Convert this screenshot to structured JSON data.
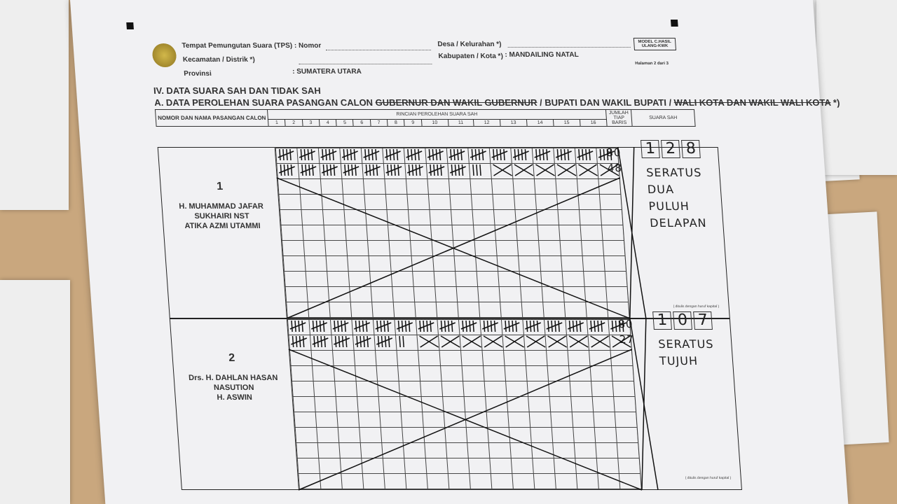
{
  "header": {
    "tps_label": "Tempat Pemungutan Suara (TPS) : Nomor",
    "kecamatan_label": "Kecamatan / Distrik *)",
    "provinsi_label": "Provinsi",
    "provinsi_value": ": SUMATERA UTARA",
    "desa_label": "Desa / Kelurahan *)",
    "kabupaten_label": "Kabupaten / Kota *)",
    "kabupaten_value": ": MANDAILING NATAL",
    "model": "MODEL C.HASIL ULANG-KWK",
    "page": "Halaman 2 dari 3"
  },
  "section": {
    "title": "IV.   DATA SUARA SAH DAN TIDAK SAH",
    "subtitle_prefix": "A. DATA PEROLEHAN SUARA PASANGAN CALON ",
    "subtitle_struck1": "GUBERNUR DAN WAKIL GUBERNUR",
    "subtitle_mid": " / BUPATI DAN WAKIL BUPATI / ",
    "subtitle_struck2": "WALI KOTA DAN WAKIL WALI KOTA",
    "subtitle_end": " *)"
  },
  "table_header": {
    "col_name": "NOMOR DAN NAMA PASANGAN CALON",
    "col_detail": "RINCIAN PEROLEHAN SUARA SAH",
    "col_sum": "JUMLAH TIAP BARIS",
    "col_valid": "SUARA SAH",
    "columns": [
      "1",
      "2",
      "3",
      "4",
      "5",
      "6",
      "7",
      "8",
      "9",
      "10",
      "11",
      "12",
      "13",
      "14",
      "15",
      "16"
    ]
  },
  "candidates": [
    {
      "number": "1",
      "names": [
        "H. MUHAMMAD JAFAR",
        "SUKHAIRI NST",
        "ATIKA AZMI UTAMMI"
      ],
      "rows": [
        {
          "tallies": 80,
          "sum": "80"
        },
        {
          "tallies": 48,
          "sum": "48"
        }
      ],
      "digits": [
        "1",
        "2",
        "8"
      ],
      "words": "SERATUS DUA PULUH DELAPAN",
      "note": "( ditulis dengan huruf kapital )"
    },
    {
      "number": "2",
      "names": [
        "Drs. H. DAHLAN HASAN",
        "NASUTION",
        "H. ASWIN"
      ],
      "rows": [
        {
          "tallies": 80,
          "sum": "80"
        },
        {
          "tallies": 27,
          "sum": "27"
        }
      ],
      "digits": [
        "1",
        "0",
        "7"
      ],
      "words": "SERATUS TUJUH",
      "note": "( ditulis dengan huruf kapital )"
    }
  ]
}
